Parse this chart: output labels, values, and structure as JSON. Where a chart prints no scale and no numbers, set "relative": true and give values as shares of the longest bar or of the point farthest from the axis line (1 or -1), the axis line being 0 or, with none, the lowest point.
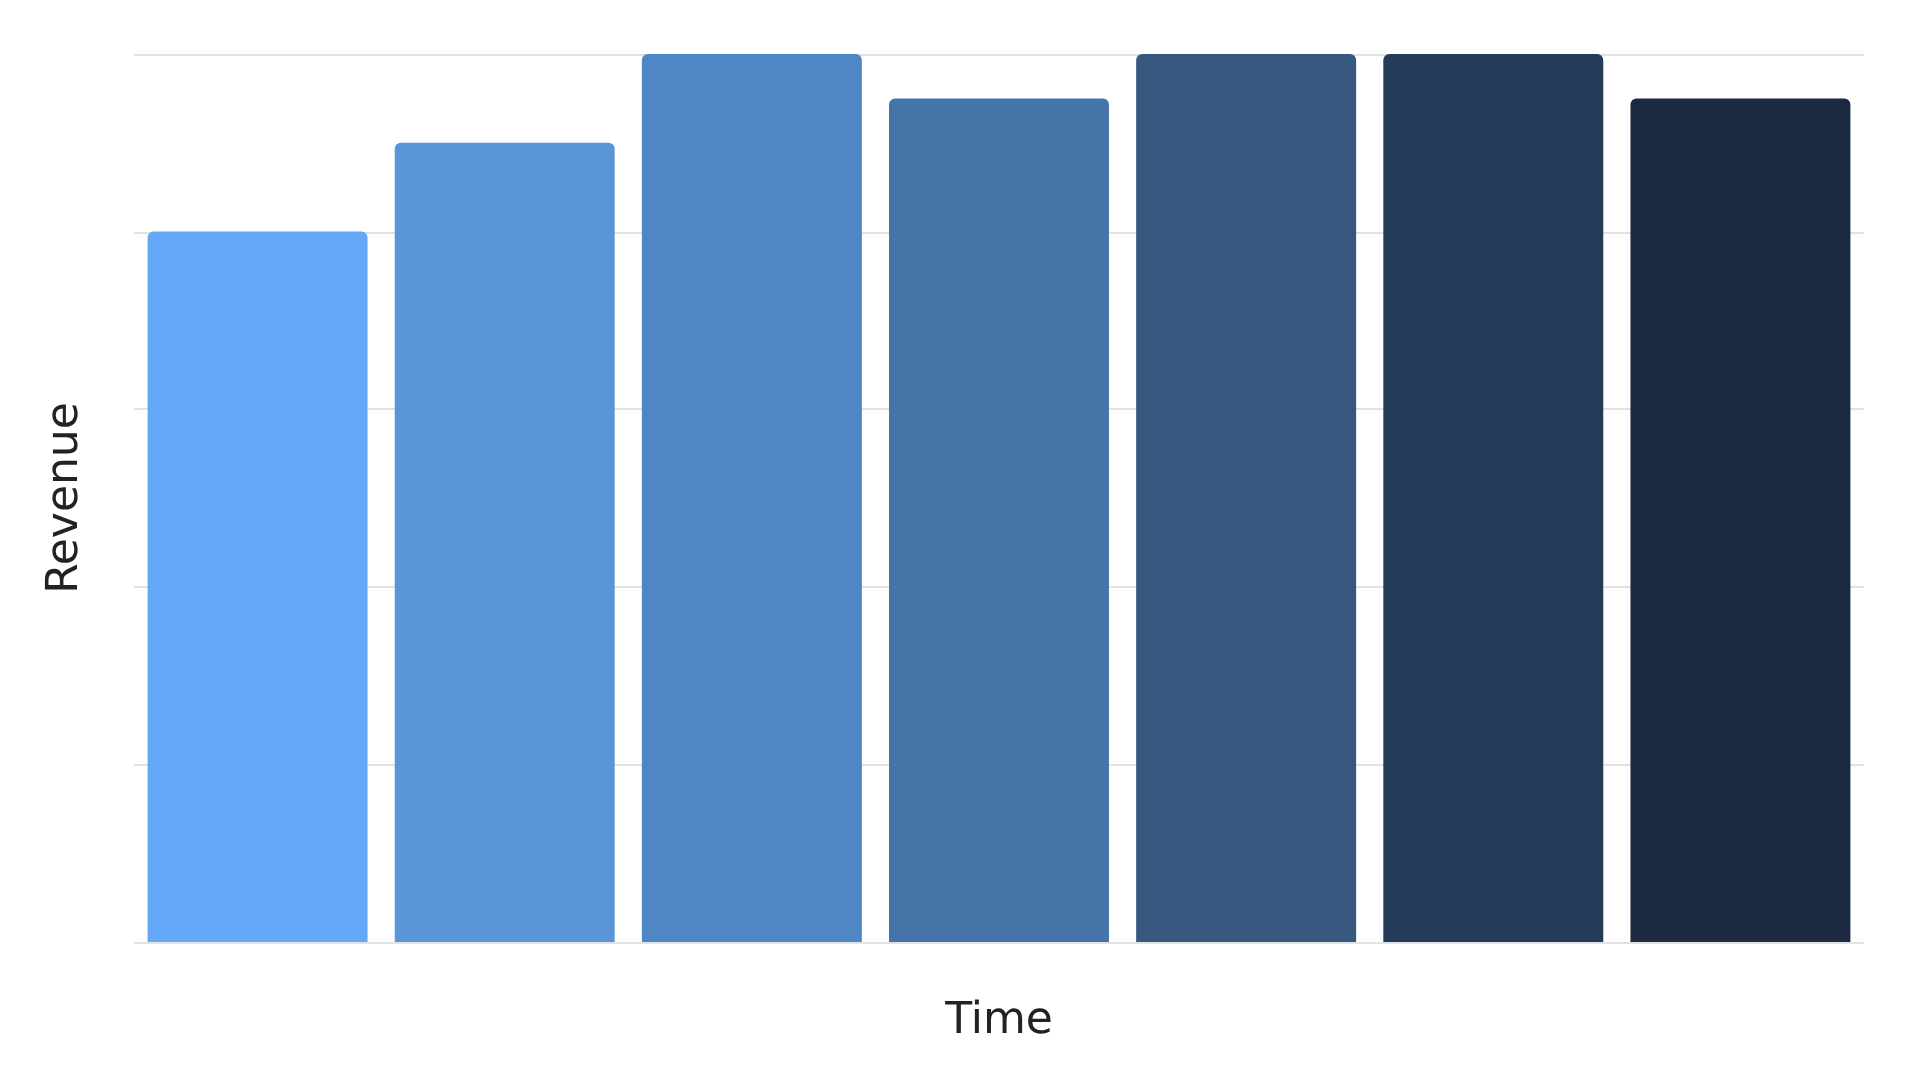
{
  "chart_data": {
    "type": "bar",
    "xlabel": "Time",
    "ylabel": "Revenue",
    "relative": true,
    "grid": "y",
    "categories": [
      null,
      null,
      null,
      null,
      null,
      null,
      null
    ],
    "values": [
      0.8,
      0.9,
      1,
      0.95,
      1,
      1,
      0.95
    ],
    "colors": [
      "#64a8f8",
      "#5a95d8",
      "#4f86c5",
      "#4574a8",
      "#36587e",
      "#243c5a",
      "#1b2a40"
    ]
  }
}
